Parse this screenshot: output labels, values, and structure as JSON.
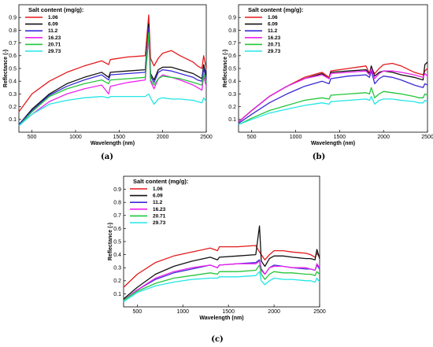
{
  "chart_data": [
    {
      "type": "line",
      "panel_label": "(a)",
      "xlabel": "Wavelength (nm)",
      "ylabel": "Reflectance (-)",
      "xlim": [
        350,
        2500
      ],
      "ylim": [
        0,
        1.0
      ],
      "xticks": [
        500,
        1000,
        1500,
        2000,
        2500
      ],
      "yticks": [
        0.1,
        0.2,
        0.3,
        0.4,
        0.5,
        0.6,
        0.7,
        0.8,
        0.9
      ],
      "legend_title": "Salt content (mg/g):",
      "legend_position": "top-left",
      "series": [
        {
          "name": "1.06",
          "color": "#e41a1c",
          "x": [
            350,
            500,
            700,
            900,
            1100,
            1300,
            1380,
            1400,
            1600,
            1800,
            1840,
            1860,
            1900,
            1950,
            2000,
            2100,
            2200,
            2350,
            2400,
            2450,
            2470,
            2500
          ],
          "y": [
            0.16,
            0.3,
            0.4,
            0.47,
            0.52,
            0.56,
            0.53,
            0.57,
            0.59,
            0.6,
            0.92,
            0.58,
            0.52,
            0.58,
            0.62,
            0.64,
            0.6,
            0.55,
            0.52,
            0.5,
            0.6,
            0.5
          ]
        },
        {
          "name": "6.09",
          "color": "#111111",
          "x": [
            350,
            500,
            700,
            900,
            1100,
            1300,
            1380,
            1400,
            1600,
            1800,
            1840,
            1860,
            1900,
            1950,
            2000,
            2100,
            2200,
            2350,
            2400,
            2450,
            2470,
            2500
          ],
          "y": [
            0.06,
            0.18,
            0.3,
            0.38,
            0.43,
            0.47,
            0.43,
            0.47,
            0.48,
            0.49,
            0.85,
            0.46,
            0.41,
            0.49,
            0.51,
            0.51,
            0.49,
            0.46,
            0.44,
            0.42,
            0.53,
            0.45
          ]
        },
        {
          "name": "11.2",
          "color": "#3a2bd6",
          "x": [
            350,
            500,
            700,
            900,
            1100,
            1300,
            1380,
            1400,
            1600,
            1800,
            1840,
            1860,
            1900,
            1950,
            2000,
            2100,
            2200,
            2350,
            2400,
            2450,
            2470,
            2500
          ],
          "y": [
            0.06,
            0.17,
            0.29,
            0.36,
            0.41,
            0.45,
            0.41,
            0.45,
            0.46,
            0.47,
            0.82,
            0.44,
            0.39,
            0.47,
            0.49,
            0.48,
            0.46,
            0.43,
            0.41,
            0.4,
            0.5,
            0.42
          ]
        },
        {
          "name": "16.23",
          "color": "#ee22ee",
          "x": [
            350,
            500,
            700,
            900,
            1100,
            1300,
            1380,
            1400,
            1600,
            1800,
            1840,
            1860,
            1900,
            1950,
            2000,
            2100,
            2200,
            2350,
            2400,
            2450,
            2470,
            2500
          ],
          "y": [
            0.05,
            0.14,
            0.24,
            0.3,
            0.34,
            0.37,
            0.3,
            0.36,
            0.39,
            0.41,
            0.75,
            0.4,
            0.34,
            0.42,
            0.45,
            0.43,
            0.41,
            0.37,
            0.35,
            0.33,
            0.44,
            0.36
          ]
        },
        {
          "name": "20.71",
          "color": "#22c63a",
          "x": [
            350,
            500,
            700,
            900,
            1100,
            1300,
            1380,
            1400,
            1600,
            1800,
            1840,
            1860,
            1900,
            1950,
            2000,
            2100,
            2200,
            2350,
            2400,
            2450,
            2470,
            2500
          ],
          "y": [
            0.05,
            0.16,
            0.28,
            0.34,
            0.38,
            0.41,
            0.38,
            0.41,
            0.42,
            0.43,
            0.78,
            0.41,
            0.37,
            0.42,
            0.44,
            0.43,
            0.42,
            0.39,
            0.38,
            0.37,
            0.46,
            0.39
          ]
        },
        {
          "name": "29.73",
          "color": "#22e6e6",
          "x": [
            350,
            500,
            700,
            900,
            1100,
            1300,
            1380,
            1400,
            1600,
            1800,
            1840,
            1860,
            1900,
            1950,
            2000,
            2100,
            2200,
            2350,
            2400,
            2450,
            2470,
            2500
          ],
          "y": [
            0.05,
            0.14,
            0.22,
            0.25,
            0.27,
            0.28,
            0.27,
            0.28,
            0.28,
            0.28,
            0.3,
            0.27,
            0.22,
            0.26,
            0.27,
            0.26,
            0.26,
            0.25,
            0.24,
            0.23,
            0.27,
            0.24
          ]
        }
      ]
    },
    {
      "type": "line",
      "panel_label": "(b)",
      "xlabel": "Wavelength (nm)",
      "ylabel": "Reflectance (-)",
      "xlim": [
        350,
        2500
      ],
      "ylim": [
        0,
        1.0
      ],
      "xticks": [
        500,
        1000,
        1500,
        2000,
        2500
      ],
      "yticks": [
        0.1,
        0.2,
        0.3,
        0.4,
        0.5,
        0.6,
        0.7,
        0.8,
        0.9
      ],
      "legend_title": "Salt content (mg/g):",
      "legend_position": "top-left",
      "series": [
        {
          "name": "1.06",
          "color": "#e41a1c",
          "x": [
            350,
            500,
            700,
            900,
            1100,
            1300,
            1380,
            1400,
            1600,
            1800,
            1840,
            1860,
            1900,
            1950,
            2000,
            2100,
            2200,
            2350,
            2400,
            2450,
            2470,
            2500
          ],
          "y": [
            0.08,
            0.17,
            0.28,
            0.36,
            0.43,
            0.47,
            0.43,
            0.48,
            0.5,
            0.52,
            0.46,
            0.5,
            0.46,
            0.5,
            0.53,
            0.54,
            0.52,
            0.47,
            0.46,
            0.45,
            0.48,
            0.5
          ]
        },
        {
          "name": "6.09",
          "color": "#111111",
          "x": [
            350,
            500,
            700,
            900,
            1100,
            1300,
            1380,
            1400,
            1600,
            1800,
            1840,
            1860,
            1900,
            1950,
            2000,
            2100,
            2200,
            2350,
            2400,
            2450,
            2470,
            2500
          ],
          "y": [
            0.08,
            0.17,
            0.28,
            0.36,
            0.42,
            0.46,
            0.42,
            0.47,
            0.48,
            0.49,
            0.46,
            0.52,
            0.44,
            0.47,
            0.48,
            0.47,
            0.45,
            0.43,
            0.42,
            0.41,
            0.53,
            0.55
          ]
        },
        {
          "name": "11.2",
          "color": "#3a2bd6",
          "x": [
            350,
            500,
            700,
            900,
            1100,
            1300,
            1380,
            1400,
            1600,
            1800,
            1840,
            1860,
            1900,
            1950,
            2000,
            2100,
            2200,
            2350,
            2400,
            2450,
            2470,
            2500
          ],
          "y": [
            0.07,
            0.14,
            0.23,
            0.3,
            0.36,
            0.4,
            0.38,
            0.42,
            0.44,
            0.45,
            0.43,
            0.48,
            0.38,
            0.42,
            0.44,
            0.43,
            0.41,
            0.37,
            0.36,
            0.35,
            0.38,
            0.37
          ]
        },
        {
          "name": "16.23",
          "color": "#ee22ee",
          "x": [
            350,
            500,
            700,
            900,
            1100,
            1300,
            1380,
            1400,
            1600,
            1800,
            1840,
            1860,
            1900,
            1950,
            2000,
            2100,
            2200,
            2350,
            2400,
            2450,
            2470,
            2500
          ],
          "y": [
            0.08,
            0.17,
            0.28,
            0.36,
            0.42,
            0.45,
            0.42,
            0.46,
            0.47,
            0.48,
            0.45,
            0.5,
            0.42,
            0.46,
            0.48,
            0.48,
            0.47,
            0.45,
            0.44,
            0.43,
            0.46,
            0.44
          ]
        },
        {
          "name": "20.71",
          "color": "#22c63a",
          "x": [
            350,
            500,
            700,
            900,
            1100,
            1300,
            1380,
            1400,
            1600,
            1800,
            1840,
            1860,
            1900,
            1950,
            2000,
            2100,
            2200,
            2350,
            2400,
            2450,
            2470,
            2500
          ],
          "y": [
            0.06,
            0.11,
            0.17,
            0.21,
            0.25,
            0.27,
            0.26,
            0.29,
            0.3,
            0.31,
            0.3,
            0.35,
            0.27,
            0.3,
            0.32,
            0.31,
            0.3,
            0.28,
            0.27,
            0.27,
            0.3,
            0.29
          ]
        },
        {
          "name": "29.73",
          "color": "#22e6e6",
          "x": [
            350,
            500,
            700,
            900,
            1100,
            1300,
            1380,
            1400,
            1600,
            1800,
            1840,
            1860,
            1900,
            1950,
            2000,
            2100,
            2200,
            2350,
            2400,
            2450,
            2470,
            2500
          ],
          "y": [
            0.06,
            0.1,
            0.15,
            0.18,
            0.21,
            0.23,
            0.22,
            0.24,
            0.25,
            0.26,
            0.25,
            0.28,
            0.22,
            0.25,
            0.26,
            0.26,
            0.25,
            0.24,
            0.23,
            0.23,
            0.25,
            0.24
          ]
        }
      ]
    },
    {
      "type": "line",
      "panel_label": "(c)",
      "xlabel": "Wavelength (nm)",
      "ylabel": "Reflectance (-)",
      "xlim": [
        350,
        2500
      ],
      "ylim": [
        0,
        1.0
      ],
      "xticks": [
        500,
        1000,
        1500,
        2000,
        2500
      ],
      "yticks": [
        0.1,
        0.2,
        0.3,
        0.4,
        0.5,
        0.6,
        0.7,
        0.8,
        0.9
      ],
      "legend_title": "Salt content (mg/g):",
      "legend_position": "top-left",
      "series": [
        {
          "name": "1.06",
          "color": "#e41a1c",
          "x": [
            350,
            500,
            700,
            900,
            1100,
            1300,
            1380,
            1400,
            1600,
            1800,
            1840,
            1860,
            1900,
            1950,
            2000,
            2100,
            2200,
            2350,
            2400,
            2450,
            2470,
            2500
          ],
          "y": [
            0.15,
            0.25,
            0.34,
            0.39,
            0.42,
            0.45,
            0.43,
            0.46,
            0.46,
            0.47,
            0.42,
            0.4,
            0.36,
            0.4,
            0.43,
            0.43,
            0.42,
            0.41,
            0.4,
            0.38,
            0.41,
            0.38
          ]
        },
        {
          "name": "6.09",
          "color": "#111111",
          "x": [
            350,
            500,
            700,
            900,
            1100,
            1300,
            1380,
            1400,
            1600,
            1800,
            1840,
            1860,
            1900,
            1950,
            2000,
            2100,
            2200,
            2350,
            2400,
            2450,
            2470,
            2500
          ],
          "y": [
            0.06,
            0.15,
            0.25,
            0.31,
            0.35,
            0.38,
            0.36,
            0.38,
            0.39,
            0.4,
            0.62,
            0.35,
            0.31,
            0.37,
            0.39,
            0.39,
            0.38,
            0.37,
            0.37,
            0.36,
            0.44,
            0.37
          ]
        },
        {
          "name": "11.2",
          "color": "#3a2bd6",
          "x": [
            350,
            500,
            700,
            900,
            1100,
            1300,
            1380,
            1400,
            1600,
            1800,
            1840,
            1860,
            1900,
            1950,
            2000,
            2100,
            2200,
            2350,
            2400,
            2450,
            2470,
            2500
          ],
          "y": [
            0.05,
            0.13,
            0.21,
            0.26,
            0.29,
            0.32,
            0.3,
            0.32,
            0.33,
            0.34,
            0.36,
            0.29,
            0.25,
            0.3,
            0.32,
            0.31,
            0.3,
            0.29,
            0.29,
            0.28,
            0.32,
            0.29
          ]
        },
        {
          "name": "16.23",
          "color": "#ee22ee",
          "x": [
            350,
            500,
            700,
            900,
            1100,
            1300,
            1380,
            1400,
            1600,
            1800,
            1840,
            1860,
            1900,
            1950,
            2000,
            2100,
            2200,
            2350,
            2400,
            2450,
            2470,
            2500
          ],
          "y": [
            0.05,
            0.13,
            0.22,
            0.27,
            0.3,
            0.32,
            0.3,
            0.32,
            0.33,
            0.33,
            0.35,
            0.28,
            0.25,
            0.3,
            0.31,
            0.31,
            0.3,
            0.3,
            0.29,
            0.28,
            0.33,
            0.3
          ]
        },
        {
          "name": "20.71",
          "color": "#22c63a",
          "x": [
            350,
            500,
            700,
            900,
            1100,
            1300,
            1380,
            1400,
            1600,
            1800,
            1840,
            1860,
            1900,
            1950,
            2000,
            2100,
            2200,
            2350,
            2400,
            2450,
            2470,
            2500
          ],
          "y": [
            0.05,
            0.12,
            0.18,
            0.22,
            0.24,
            0.26,
            0.25,
            0.27,
            0.27,
            0.28,
            0.32,
            0.25,
            0.21,
            0.25,
            0.27,
            0.26,
            0.26,
            0.25,
            0.25,
            0.24,
            0.27,
            0.25
          ]
        },
        {
          "name": "29.73",
          "color": "#22e6e6",
          "x": [
            350,
            500,
            700,
            900,
            1100,
            1300,
            1380,
            1400,
            1600,
            1800,
            1840,
            1860,
            1900,
            1950,
            2000,
            2100,
            2200,
            2350,
            2400,
            2450,
            2470,
            2500
          ],
          "y": [
            0.04,
            0.11,
            0.16,
            0.19,
            0.21,
            0.22,
            0.22,
            0.23,
            0.23,
            0.24,
            0.27,
            0.2,
            0.17,
            0.2,
            0.22,
            0.21,
            0.21,
            0.2,
            0.2,
            0.19,
            0.22,
            0.19
          ]
        }
      ]
    }
  ]
}
